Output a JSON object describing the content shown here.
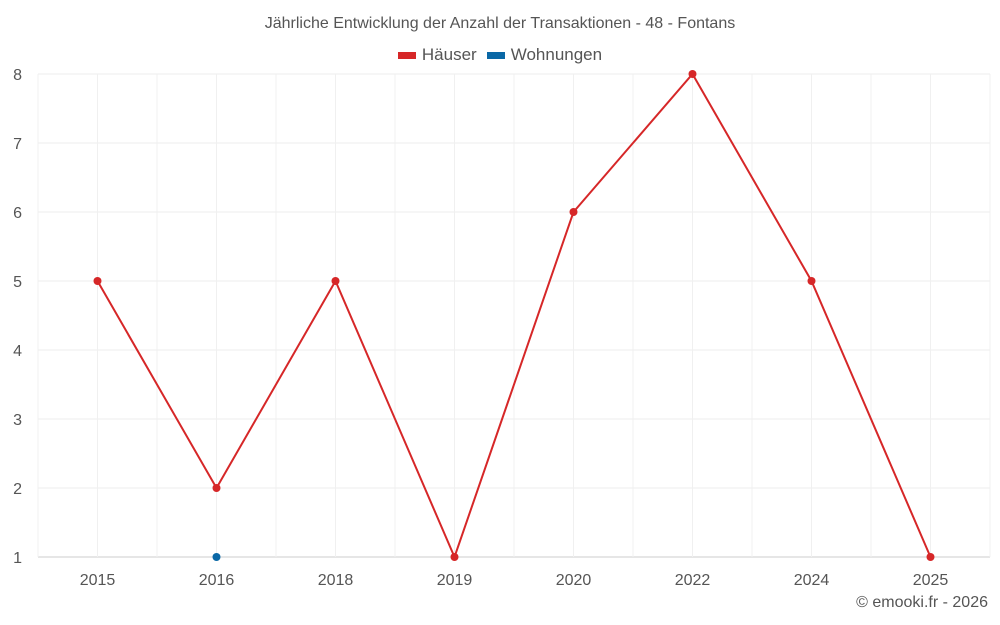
{
  "chart_data": {
    "type": "line",
    "title": "Jährliche Entwicklung der Anzahl der Transaktionen - 48 - Fontans",
    "categories": [
      "2015",
      "2016",
      "2018",
      "2019",
      "2020",
      "2022",
      "2024",
      "2025"
    ],
    "series": [
      {
        "name": "Häuser",
        "color": "#d62728",
        "values": [
          5,
          2,
          5,
          1,
          6,
          8,
          5,
          1
        ]
      },
      {
        "name": "Wohnungen",
        "color": "#0a68a6",
        "values": [
          null,
          1,
          null,
          null,
          null,
          null,
          null,
          null
        ]
      }
    ],
    "ylim": [
      1,
      8
    ],
    "yticks": [
      1,
      2,
      3,
      4,
      5,
      6,
      7,
      8
    ],
    "grid": true,
    "legend_position": "top-center",
    "xlabel": "",
    "ylabel": ""
  },
  "credit": "© emooki.fr - 2026"
}
